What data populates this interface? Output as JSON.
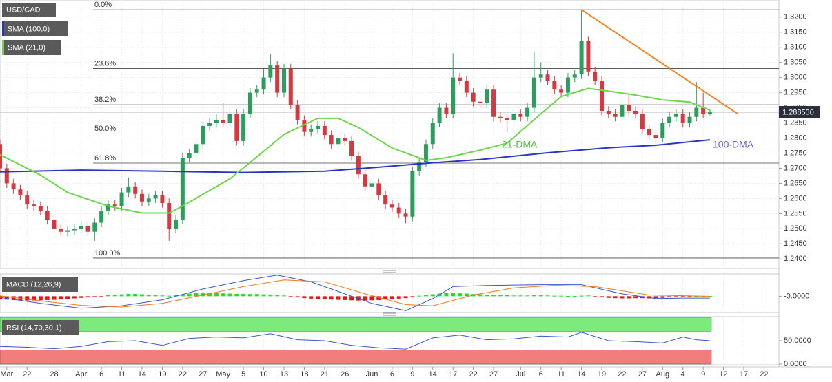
{
  "chart_data": [
    {
      "type": "candlestick",
      "symbol": "USD/CAD",
      "xlim": [
        0,
        115.2
      ],
      "ylim": [
        1.2371,
        1.3254
      ],
      "xticks": [
        {
          "value": 1,
          "label": "Mar"
        },
        {
          "value": 4,
          "label": "22"
        },
        {
          "value": 8,
          "label": "28"
        },
        {
          "value": 12,
          "label": "Apr"
        },
        {
          "value": 15,
          "label": "6"
        },
        {
          "value": 18,
          "label": "11"
        },
        {
          "value": 21,
          "label": "14"
        },
        {
          "value": 24,
          "label": "19"
        },
        {
          "value": 27,
          "label": "22"
        },
        {
          "value": 30,
          "label": "27"
        },
        {
          "value": 33,
          "label": "May"
        },
        {
          "value": 36,
          "label": "5"
        },
        {
          "value": 39,
          "label": "10"
        },
        {
          "value": 42,
          "label": "13"
        },
        {
          "value": 45,
          "label": "18"
        },
        {
          "value": 48,
          "label": "21"
        },
        {
          "value": 51,
          "label": "26"
        },
        {
          "value": 55,
          "label": "Jun"
        },
        {
          "value": 58,
          "label": "6"
        },
        {
          "value": 61,
          "label": "9"
        },
        {
          "value": 64,
          "label": "14"
        },
        {
          "value": 67,
          "label": "17"
        },
        {
          "value": 70,
          "label": "22"
        },
        {
          "value": 73,
          "label": "27"
        },
        {
          "value": 77,
          "label": "Jul"
        },
        {
          "value": 80,
          "label": "6"
        },
        {
          "value": 83,
          "label": "11"
        },
        {
          "value": 86,
          "label": "14"
        },
        {
          "value": 89,
          "label": "19"
        },
        {
          "value": 92,
          "label": "22"
        },
        {
          "value": 95,
          "label": "27"
        },
        {
          "value": 98,
          "label": "Aug"
        },
        {
          "value": 101,
          "label": "4"
        },
        {
          "value": 104,
          "label": "9"
        },
        {
          "value": 107,
          "label": "12"
        },
        {
          "value": 110,
          "label": "17"
        },
        {
          "value": 113,
          "label": "22"
        }
      ],
      "yticks": [
        {
          "value": 1.24,
          "label": "1.2400"
        },
        {
          "value": 1.245,
          "label": "1.2450"
        },
        {
          "value": 1.25,
          "label": "1.2500"
        },
        {
          "value": 1.255,
          "label": "1.2550"
        },
        {
          "value": 1.26,
          "label": "1.2600"
        },
        {
          "value": 1.265,
          "label": "1.2650"
        },
        {
          "value": 1.27,
          "label": "1.2700"
        },
        {
          "value": 1.275,
          "label": "1.2750"
        },
        {
          "value": 1.28,
          "label": "1.2800"
        },
        {
          "value": 1.285,
          "label": "1.2850"
        },
        {
          "value": 1.29,
          "label": "1.2900"
        },
        {
          "value": 1.295,
          "label": "1.2950"
        },
        {
          "value": 1.3,
          "label": "1.3000"
        },
        {
          "value": 1.305,
          "label": "1.3050"
        },
        {
          "value": 1.31,
          "label": "1.3100"
        },
        {
          "value": 1.315,
          "label": "1.3150"
        },
        {
          "value": 1.32,
          "label": "1.3200"
        }
      ],
      "grid": true,
      "up_color": "#2c9d5c",
      "down_color": "#d5393f",
      "open": [
        1.278,
        1.27,
        1.265,
        1.263,
        1.261,
        1.258,
        1.2575,
        1.256,
        1.253,
        1.25,
        1.249,
        1.2495,
        1.25,
        1.251,
        1.249,
        1.252,
        1.256,
        1.258,
        1.2575,
        1.262,
        1.264,
        1.2615,
        1.259,
        1.26,
        1.261,
        1.2585,
        1.25,
        1.253,
        1.2735,
        1.275,
        1.278,
        1.284,
        1.285,
        1.286,
        1.285,
        1.288,
        1.279,
        1.288,
        1.295,
        1.296,
        1.3,
        1.304,
        1.295,
        1.303,
        1.291,
        1.286,
        1.282,
        1.283,
        1.284,
        1.281,
        1.278,
        1.28,
        1.279,
        1.274,
        1.268,
        1.264,
        1.265,
        1.261,
        1.258,
        1.257,
        1.255,
        1.254,
        1.269,
        1.272,
        1.278,
        1.285,
        1.29,
        1.288,
        1.3,
        1.299,
        1.295,
        1.292,
        1.2915,
        1.296,
        1.287,
        1.2865,
        1.286,
        1.288,
        1.287,
        1.29,
        1.3,
        1.301,
        1.299,
        1.296,
        1.295,
        1.3,
        1.301,
        1.312,
        1.302,
        1.299,
        1.289,
        1.288,
        1.287,
        1.291,
        1.289,
        1.288,
        1.283,
        1.281,
        1.28,
        1.285,
        1.287,
        1.288,
        1.285,
        1.287,
        1.29,
        1.288
      ],
      "high": [
        1.2795,
        1.2715,
        1.2665,
        1.2645,
        1.2625,
        1.2595,
        1.259,
        1.2575,
        1.2545,
        1.2515,
        1.251,
        1.2515,
        1.2525,
        1.2525,
        1.2535,
        1.2575,
        1.2595,
        1.2595,
        1.2635,
        1.267,
        1.2655,
        1.263,
        1.2615,
        1.2625,
        1.2625,
        1.26,
        1.2545,
        1.275,
        1.2765,
        1.2795,
        1.2855,
        1.2865,
        1.288,
        1.2915,
        1.2895,
        1.2895,
        1.2895,
        1.2965,
        1.2975,
        1.303,
        1.3077,
        1.3055,
        1.3045,
        1.3045,
        1.2925,
        1.2875,
        1.2845,
        1.2855,
        1.2855,
        1.2825,
        1.2815,
        1.2815,
        1.2805,
        1.2755,
        1.2695,
        1.2665,
        1.2665,
        1.2625,
        1.2595,
        1.2585,
        1.2565,
        1.2705,
        1.2735,
        1.2795,
        1.2865,
        1.2915,
        1.2915,
        1.308,
        1.3015,
        1.3005,
        1.2965,
        1.2935,
        1.2975,
        1.2975,
        1.2885,
        1.288,
        1.2895,
        1.2895,
        1.2915,
        1.3085,
        1.305,
        1.3025,
        1.3005,
        1.2975,
        1.3015,
        1.3025,
        1.3224,
        1.3135,
        1.3035,
        1.3005,
        1.2905,
        1.2895,
        1.2925,
        1.2945,
        1.2905,
        1.2895,
        1.2845,
        1.2825,
        1.2865,
        1.2885,
        1.2895,
        1.2895,
        1.2885,
        1.2985,
        1.295,
        1.2895
      ],
      "low": [
        1.2685,
        1.2635,
        1.2615,
        1.2595,
        1.2565,
        1.256,
        1.2545,
        1.2515,
        1.2485,
        1.2475,
        1.2475,
        1.248,
        1.2485,
        1.2475,
        1.246,
        1.2505,
        1.2545,
        1.256,
        1.256,
        1.2605,
        1.26,
        1.2575,
        1.2575,
        1.2585,
        1.257,
        1.246,
        1.2485,
        1.2515,
        1.272,
        1.2735,
        1.2765,
        1.2825,
        1.2835,
        1.2835,
        1.2835,
        1.2775,
        1.2775,
        1.2865,
        1.2935,
        1.2945,
        1.2985,
        1.2935,
        1.2935,
        1.2895,
        1.2845,
        1.2805,
        1.2805,
        1.2815,
        1.2795,
        1.2765,
        1.2765,
        1.2775,
        1.2725,
        1.2665,
        1.2625,
        1.2625,
        1.2595,
        1.2565,
        1.2555,
        1.2535,
        1.2518,
        1.2525,
        1.2675,
        1.2705,
        1.2765,
        1.2835,
        1.2865,
        1.2865,
        1.2975,
        1.2935,
        1.2905,
        1.29,
        1.29,
        1.2855,
        1.285,
        1.282,
        1.2845,
        1.2855,
        1.2855,
        1.2885,
        1.2985,
        1.2975,
        1.2945,
        1.2935,
        1.2935,
        1.2985,
        1.2995,
        1.3005,
        1.2975,
        1.2875,
        1.2865,
        1.2855,
        1.2855,
        1.2875,
        1.2865,
        1.2815,
        1.2795,
        1.277,
        1.2785,
        1.2835,
        1.2855,
        1.2835,
        1.2835,
        1.2855,
        1.2865,
        1.2875
      ],
      "close": [
        1.27,
        1.265,
        1.263,
        1.261,
        1.258,
        1.2575,
        1.256,
        1.253,
        1.25,
        1.249,
        1.2495,
        1.25,
        1.251,
        1.249,
        1.252,
        1.256,
        1.258,
        1.2575,
        1.262,
        1.264,
        1.2615,
        1.259,
        1.26,
        1.261,
        1.2585,
        1.25,
        1.253,
        1.2735,
        1.275,
        1.278,
        1.284,
        1.285,
        1.286,
        1.285,
        1.288,
        1.279,
        1.288,
        1.295,
        1.296,
        1.3,
        1.304,
        1.295,
        1.303,
        1.291,
        1.286,
        1.282,
        1.283,
        1.284,
        1.281,
        1.278,
        1.28,
        1.279,
        1.274,
        1.268,
        1.264,
        1.265,
        1.261,
        1.258,
        1.257,
        1.255,
        1.254,
        1.269,
        1.272,
        1.278,
        1.285,
        1.29,
        1.288,
        1.3,
        1.299,
        1.295,
        1.292,
        1.2915,
        1.296,
        1.287,
        1.2865,
        1.286,
        1.288,
        1.287,
        1.29,
        1.3,
        1.301,
        1.299,
        1.296,
        1.295,
        1.3,
        1.301,
        1.312,
        1.302,
        1.299,
        1.289,
        1.288,
        1.287,
        1.291,
        1.289,
        1.288,
        1.283,
        1.281,
        1.28,
        1.285,
        1.287,
        1.288,
        1.285,
        1.287,
        1.29,
        1.288,
        1.2885
      ],
      "series": [
        {
          "name": "SMA (100,0)",
          "color": "#2436c4",
          "annotation": "100-DMA",
          "annotation_color": "#6d5fc9",
          "x": [
            0,
            12,
            24,
            36,
            48,
            55,
            64,
            71,
            81,
            90,
            97,
            105
          ],
          "values": [
            1.2688,
            1.2694,
            1.269,
            1.2686,
            1.269,
            1.2702,
            1.2718,
            1.2729,
            1.2751,
            1.2768,
            1.2776,
            1.2794
          ]
        },
        {
          "name": "SMA (21,0)",
          "color": "#6ad84a",
          "annotation": "21-DMA",
          "annotation_color": "#4cc43a",
          "x": [
            0,
            6,
            10,
            16,
            21,
            25,
            27,
            34,
            39,
            42,
            47,
            50,
            53,
            58,
            63,
            66,
            71,
            75,
            80,
            83,
            87,
            90,
            94,
            98,
            102,
            105
          ],
          "values": [
            1.2745,
            1.2677,
            1.262,
            1.2575,
            1.2552,
            1.2552,
            1.2575,
            1.2665,
            1.2756,
            1.2812,
            1.2865,
            1.2865,
            1.2835,
            1.2767,
            1.2726,
            1.2735,
            1.276,
            1.2783,
            1.288,
            1.2937,
            1.2964,
            1.2955,
            1.2942,
            1.2926,
            1.2919,
            1.2892
          ]
        }
      ],
      "trendline": {
        "color": "#f5821f",
        "x": [
          86,
          109.1
        ],
        "values": [
          1.3224,
          1.288
        ]
      },
      "fib_levels": [
        {
          "value": 1.3224,
          "label": "0.0%"
        },
        {
          "value": 1.303,
          "label": "23.6%"
        },
        {
          "value": 1.291,
          "label": "38.2%"
        },
        {
          "value": 1.2814,
          "label": "50.0%"
        },
        {
          "value": 1.2717,
          "label": "61.8%"
        },
        {
          "value": 1.2403,
          "label": "100.0%"
        }
      ],
      "last_price": {
        "value": 1.28853,
        "label": "1.288530"
      }
    },
    {
      "type": "macd",
      "label": "MACD (12,26,9)",
      "ylim": [
        -0.0065,
        0.009
      ],
      "yticks": [
        {
          "value": 0,
          "label": "-0.0000"
        }
      ],
      "positive_color": "#22e022",
      "negative_color": "#ee1111",
      "histogram": [
        -0.0012,
        -0.0014,
        -0.0016,
        -0.0017,
        -0.0018,
        -0.0018,
        -0.0017,
        -0.0016,
        -0.0015,
        -0.0013,
        -0.0011,
        -0.0009,
        -0.0007,
        -0.0005,
        -0.0004,
        -0.0002,
        0.0004,
        0.0006,
        0.0008,
        0.001,
        0.001,
        0.0008,
        0.0006,
        0.0004,
        0.0003,
        0.0002,
        0.0004,
        0.0008,
        0.0011,
        0.0013,
        0.0014,
        0.0014,
        0.0013,
        0.0012,
        0.0011,
        0.001,
        0.001,
        0.0009,
        0.0009,
        0.0008,
        0.0007,
        0.0005,
        0.0003,
        -0.0002,
        -0.0005,
        -0.0008,
        -0.001,
        -0.0012,
        -0.0013,
        -0.0014,
        -0.0015,
        -0.0016,
        -0.0017,
        -0.0018,
        -0.0018,
        -0.0017,
        -0.0016,
        -0.0014,
        -0.0012,
        -0.001,
        -0.0008,
        -0.0005,
        0.0002,
        0.0005,
        0.0008,
        0.0011,
        0.0013,
        0.0013,
        0.0012,
        0.0011,
        0.0009,
        0.0008,
        0.0007,
        0.0006,
        0.0005,
        0.0004,
        0.0003,
        0.0003,
        0.0003,
        0.0004,
        0.0004,
        0.0003,
        0.0002,
        0.0002,
        0.0001,
        0.0001,
        0.0002,
        0.0003,
        -0.0003,
        -0.0005,
        -0.0007,
        -0.0008,
        -0.0009,
        -0.0009,
        -0.0008,
        -0.0008,
        -0.0009,
        -0.0008,
        -0.0007,
        -0.0005,
        -0.0004,
        -0.0003,
        -0.0002,
        0.0001,
        0.0001,
        0.0001
      ],
      "macd": {
        "color": "#3556d0",
        "x": [
          0,
          6,
          12,
          18,
          24,
          30,
          36,
          41,
          46,
          50,
          55,
          60,
          64,
          67,
          72,
          80,
          86,
          92,
          97,
          101,
          105
        ],
        "values": [
          -0.0005,
          -0.003,
          -0.005,
          -0.004,
          -0.0015,
          0.003,
          0.0065,
          0.0088,
          0.006,
          0.002,
          -0.003,
          -0.006,
          -0.001,
          0.004,
          0.0045,
          0.0048,
          0.0048,
          0.001,
          -0.001,
          -0.0008,
          -0.0008
        ]
      },
      "signal": {
        "color": "#f07a1a",
        "x": [
          0,
          6,
          12,
          18,
          24,
          30,
          36,
          42,
          48,
          54,
          60,
          64,
          70,
          76,
          82,
          88,
          96,
          105
        ],
        "values": [
          0.0002,
          -0.002,
          -0.0038,
          -0.0045,
          -0.003,
          0.0005,
          0.004,
          0.0068,
          0.006,
          0.001,
          -0.0035,
          -0.004,
          0.0005,
          0.0035,
          0.0045,
          0.004,
          0.0005,
          0
        ]
      }
    },
    {
      "type": "line",
      "label": "RSI (14,70,30,1)",
      "ylim": [
        0,
        100
      ],
      "yticks": [
        {
          "value": 50,
          "label": "50.0000"
        },
        {
          "value": 0,
          "label": "0.0000"
        }
      ],
      "bands": [
        {
          "from": 70,
          "to": 100,
          "color": "#7cea7c"
        },
        {
          "from": 0,
          "to": 30,
          "color": "#f27d7d"
        }
      ],
      "color": "#3a56cc",
      "x": [
        0,
        4,
        8,
        12,
        16,
        20,
        24,
        28,
        32,
        36,
        40,
        44,
        48,
        52,
        56,
        60,
        64,
        68,
        72,
        76,
        80,
        84,
        86,
        90,
        94,
        98,
        101,
        103,
        105
      ],
      "values": [
        38,
        36,
        33,
        38,
        48,
        50,
        40,
        55,
        58,
        56,
        65,
        52,
        50,
        40,
        35,
        32,
        56,
        62,
        52,
        54,
        60,
        58,
        68,
        50,
        48,
        45,
        58,
        52,
        50
      ]
    }
  ]
}
